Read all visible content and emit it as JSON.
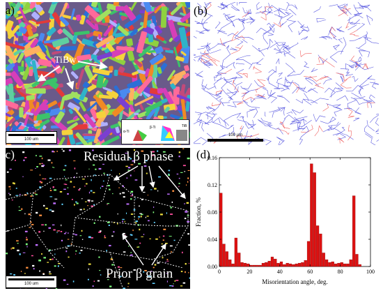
{
  "panels": {
    "a": {
      "label": "(a)",
      "annotation": "TiBw",
      "scale_text": "100 um",
      "legend": {
        "alpha_label": "α-Ti",
        "beta_label": "β-Ti",
        "tib_label": "TiB",
        "hcp_text": "1-2-10",
        "bcc_text": "101"
      }
    },
    "b": {
      "label": "(b)",
      "scale_text": "100 μm"
    },
    "c": {
      "label": "(c)",
      "scale_text": "100 um",
      "residual_text": "Residual β phase",
      "prior_text": "Prior β grain"
    },
    "d": {
      "label": "(d)"
    }
  },
  "chart_data": {
    "type": "bar",
    "xlabel": "Misorientation angle, deg.",
    "ylabel": "Fraction, %",
    "xlim": [
      0,
      100
    ],
    "ylim": [
      0,
      0.16
    ],
    "xticks": [
      0,
      20,
      40,
      60,
      80,
      100
    ],
    "yticks": [
      0.0,
      0.04,
      0.08,
      0.12,
      0.16
    ],
    "bar_color": "#dd1111",
    "x": [
      1,
      3,
      5,
      7,
      9,
      11,
      13,
      15,
      17,
      19,
      21,
      23,
      25,
      27,
      29,
      31,
      33,
      35,
      37,
      39,
      41,
      43,
      45,
      47,
      49,
      51,
      53,
      55,
      57,
      59,
      61,
      63,
      65,
      67,
      69,
      71,
      73,
      75,
      77,
      79,
      81,
      83,
      85,
      87,
      89,
      91,
      93
    ],
    "values": [
      0.108,
      0.033,
      0.022,
      0.01,
      0.004,
      0.042,
      0.02,
      0.006,
      0.005,
      0.004,
      0.002,
      0.002,
      0.002,
      0.002,
      0.005,
      0.006,
      0.008,
      0.014,
      0.011,
      0.005,
      0.007,
      0.003,
      0.005,
      0.004,
      0.003,
      0.004,
      0.005,
      0.006,
      0.009,
      0.037,
      0.151,
      0.138,
      0.06,
      0.048,
      0.02,
      0.01,
      0.006,
      0.007,
      0.004,
      0.005,
      0.006,
      0.004,
      0.004,
      0.01,
      0.104,
      0.018,
      0.003
    ]
  }
}
